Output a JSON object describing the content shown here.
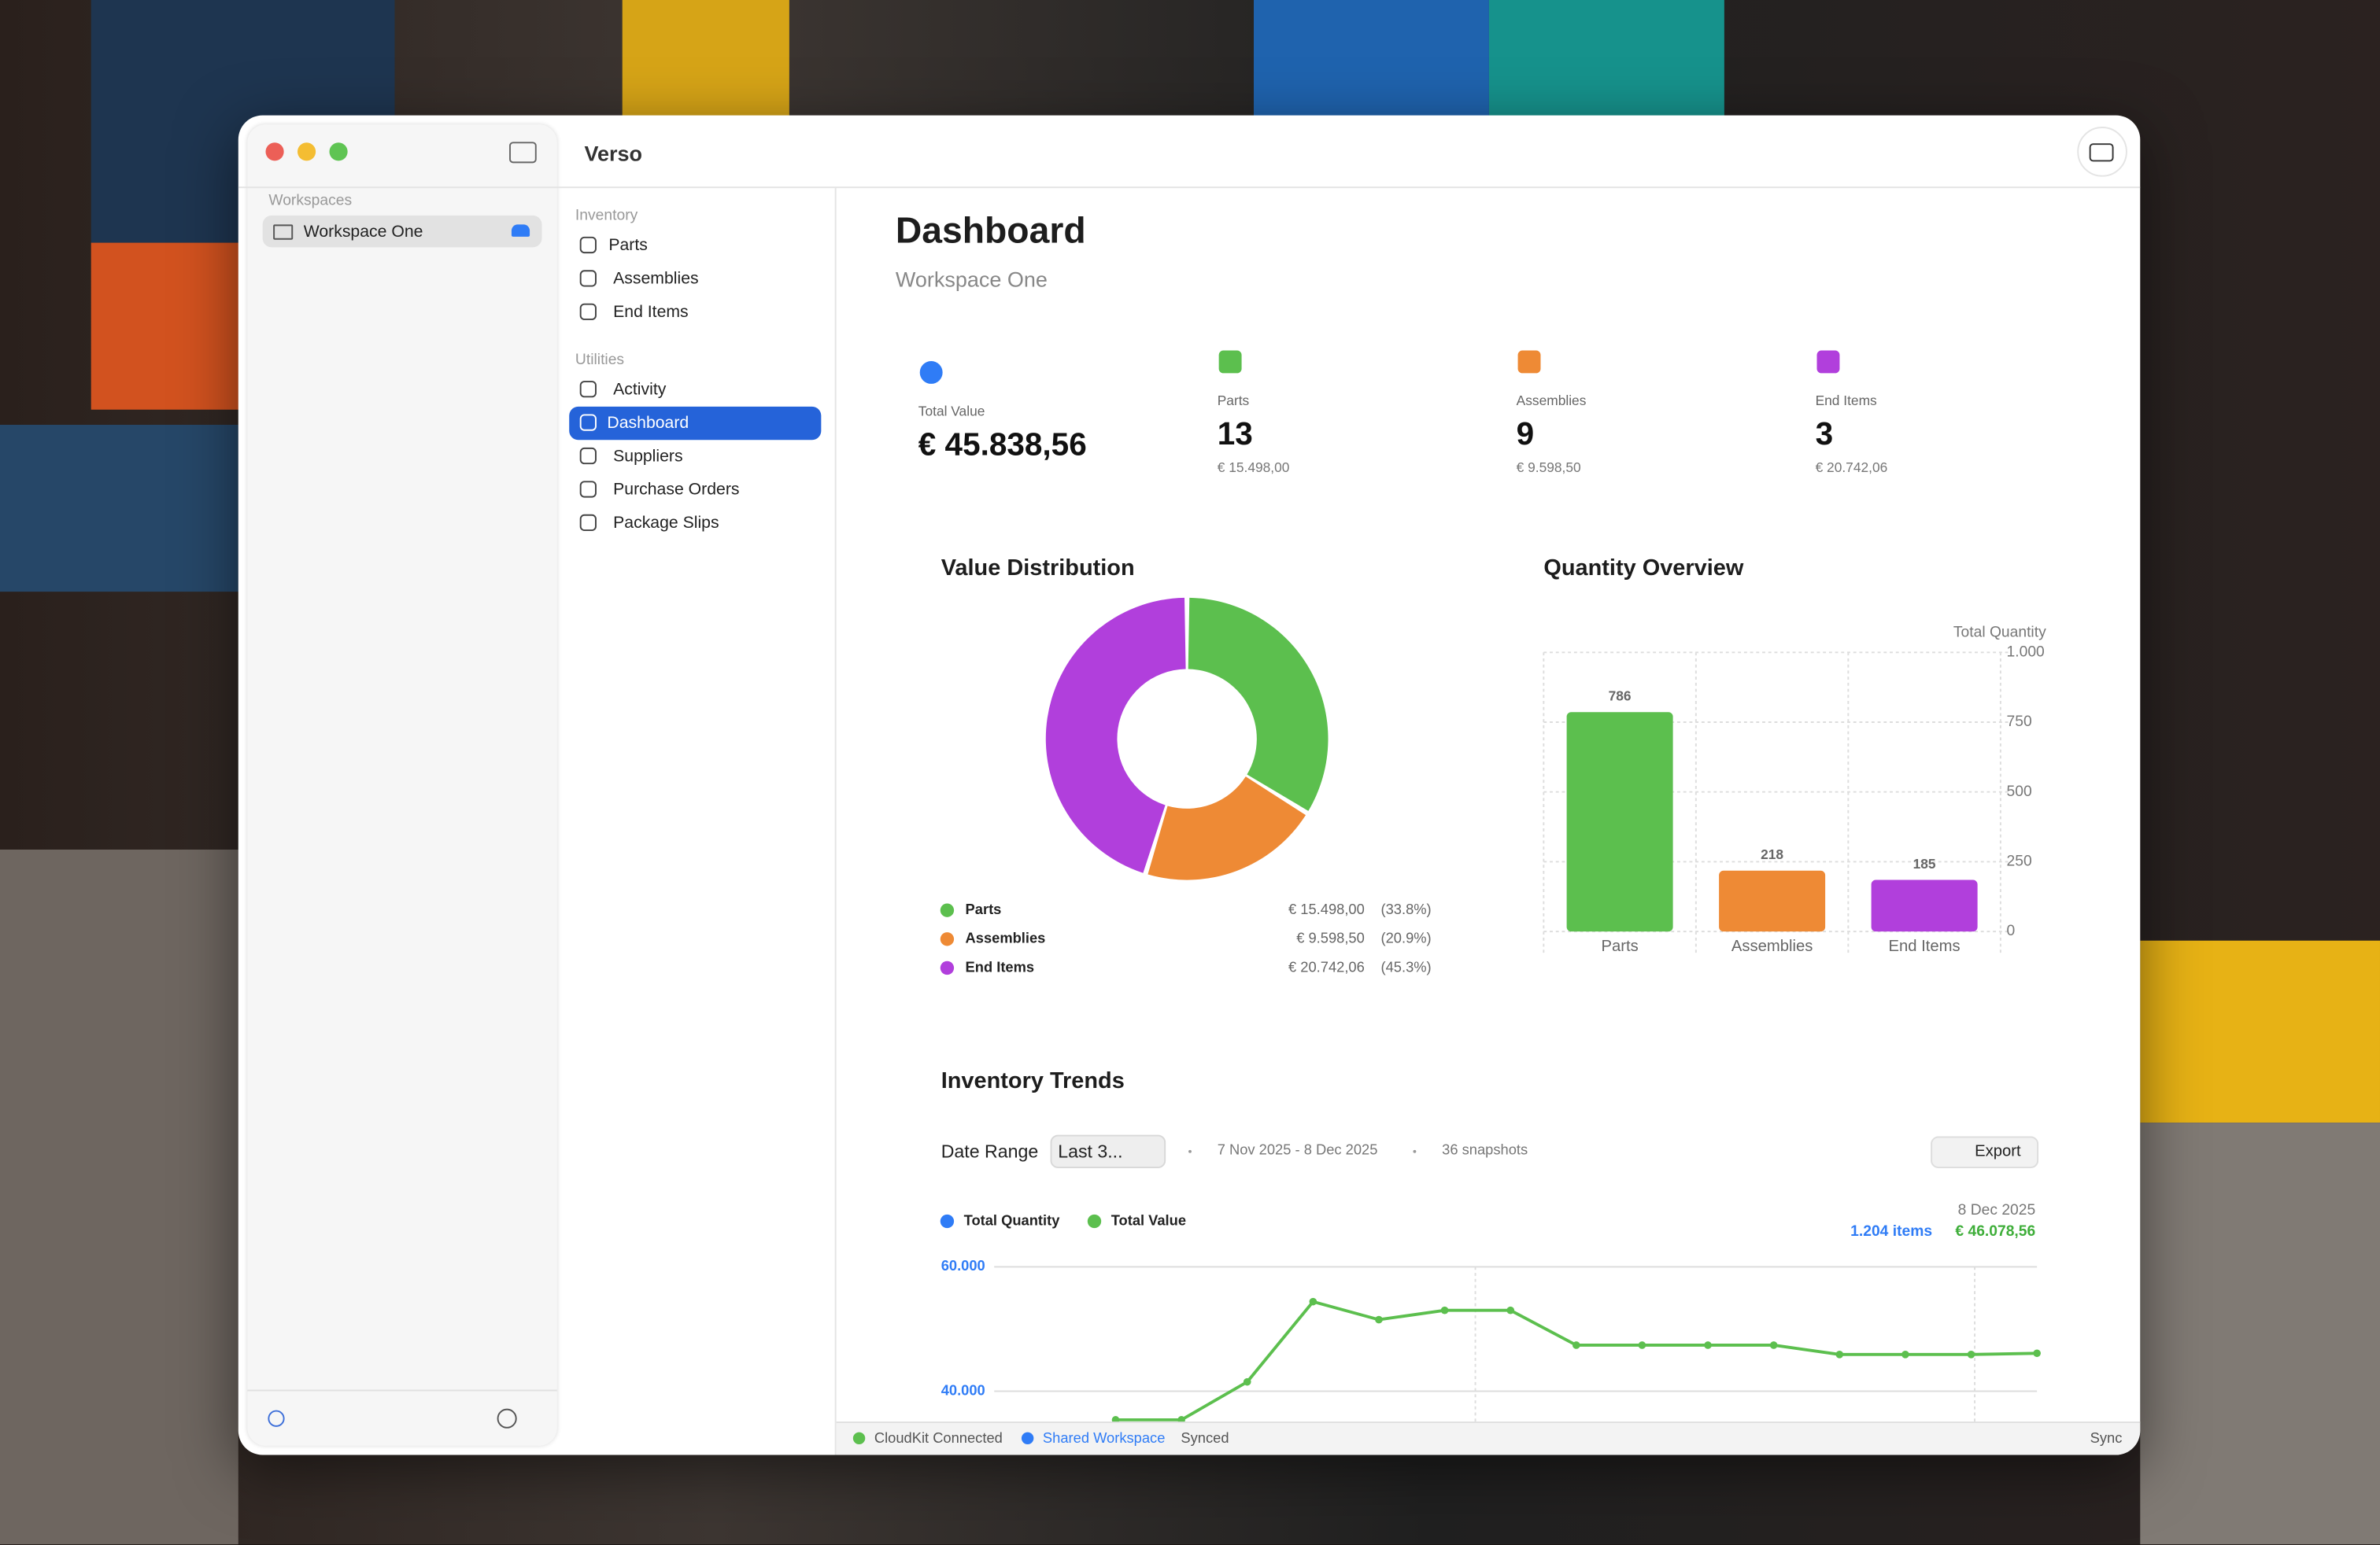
{
  "app": {
    "title": "Verso"
  },
  "sidebar": {
    "workspaces_label": "Workspaces",
    "workspace": "Workspace One"
  },
  "nav": {
    "sections": [
      {
        "label": "Inventory",
        "items": [
          "Parts",
          "Assemblies",
          "End Items"
        ]
      },
      {
        "label": "Utilities",
        "items": [
          "Activity",
          "Dashboard",
          "Suppliers",
          "Purchase Orders",
          "Package Slips"
        ]
      }
    ],
    "selected": "Dashboard"
  },
  "header": {
    "title": "Dashboard",
    "subtitle": "Workspace One"
  },
  "stats": [
    {
      "label": "Total Value",
      "value": "€ 45.838,56",
      "color": "#2f7cf6"
    },
    {
      "label": "Parts",
      "value": "13",
      "sub": "€ 15.498,00",
      "color": "#5cbf4e"
    },
    {
      "label": "Assemblies",
      "value": "9",
      "sub": "€ 9.598,50",
      "color": "#ee8a35"
    },
    {
      "label": "End Items",
      "value": "3",
      "sub": "€ 20.742,06",
      "color": "#b13fdc"
    }
  ],
  "value_distribution": {
    "type": "pie",
    "title": "Value Distribution",
    "categories": [
      "Parts",
      "Assemblies",
      "End Items"
    ],
    "values": [
      15498.0,
      9598.5,
      20742.06
    ],
    "value_labels": [
      "€ 15.498,00",
      "€ 9.598,50",
      "€ 20.742,06"
    ],
    "percent_labels": [
      "(33.8%)",
      "(20.9%)",
      "(45.3%)"
    ],
    "colors": [
      "#5cbf4e",
      "#ee8a35",
      "#b13fdc"
    ]
  },
  "quantity_overview": {
    "type": "bar",
    "title": "Quantity Overview",
    "y_label": "Total Quantity",
    "categories": [
      "Parts",
      "Assemblies",
      "End Items"
    ],
    "values": [
      786,
      218,
      185
    ],
    "colors": [
      "#5cbf4e",
      "#ee8a35",
      "#b13fdc"
    ],
    "ylim": [
      0,
      1000
    ],
    "yticks": [
      0,
      250,
      500,
      750,
      {
        "value": 1000,
        "label": "1.000"
      }
    ]
  },
  "inventory_trends": {
    "type": "line",
    "title": "Inventory Trends",
    "date_range_label": "Date Range",
    "date_range_value": "Last 3...",
    "period": "7 Nov 2025 - 8 Dec 2025",
    "snapshots": "36 snapshots",
    "export": "Export",
    "latest_date": "8 Dec 2025",
    "latest_quantity": "1.204 items",
    "latest_value": "€ 46.078,56",
    "legend": [
      {
        "name": "Total Quantity",
        "color": "#2f7cf6"
      },
      {
        "name": "Total Value",
        "color": "#5cbf4e"
      }
    ],
    "series": [
      {
        "name": "Total Value",
        "color": "#5cbf4e",
        "values": [
          35400,
          35400,
          41500,
          54400,
          51500,
          53000,
          53000,
          47400,
          47400,
          47400,
          47400,
          45900,
          45900,
          45900,
          46100
        ]
      }
    ],
    "ylim": [
      35000,
      60000
    ],
    "yticks": [
      {
        "value": 40000,
        "label": "40.000"
      },
      {
        "value": 60000,
        "label": "60.000"
      }
    ]
  },
  "status": {
    "cloud": "CloudKit Connected",
    "shared": "Shared Workspace",
    "synced": "Synced",
    "sync": "Sync"
  }
}
